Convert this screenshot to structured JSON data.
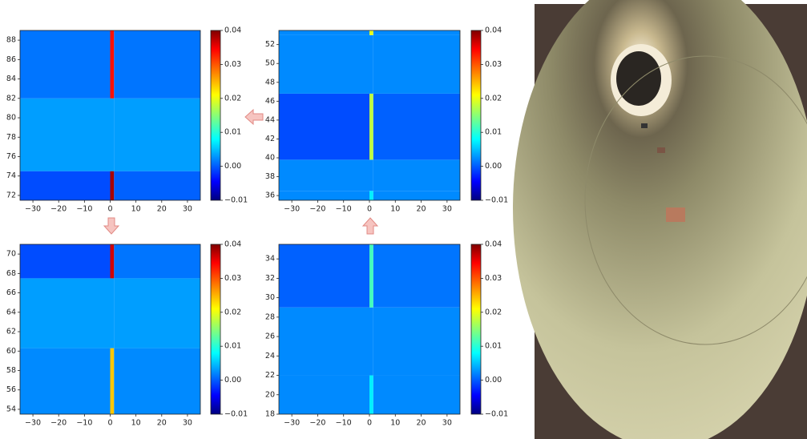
{
  "chart_data": [
    {
      "type": "heatmap",
      "colormap": "jet",
      "xlim": [
        -35,
        35
      ],
      "ylim": [
        71.5,
        89
      ],
      "xticks": [
        {
          "value": -30,
          "label": "−30"
        },
        {
          "value": -20,
          "label": "−20"
        },
        {
          "value": -10,
          "label": "−10"
        },
        0,
        10,
        20,
        30
      ],
      "yticks": [
        72,
        74,
        76,
        78,
        80,
        82,
        84,
        86,
        88
      ],
      "x_bins": [
        -35,
        0,
        1.5,
        35
      ],
      "y_bins": [
        71.5,
        74.5,
        82,
        89
      ],
      "values": [
        [
          0.0,
          0.038,
          0.001
        ],
        [
          0.004,
          0.004,
          0.004
        ],
        [
          0.002,
          0.033,
          0.002
        ]
      ],
      "clim": [
        -0.01,
        0.04
      ],
      "cticks": [
        {
          "value": -0.01,
          "label": "−0.01"
        },
        {
          "value": 0,
          "label": "0.00"
        },
        0.01,
        0.02,
        0.03,
        0.04
      ]
    },
    {
      "type": "heatmap",
      "colormap": "jet",
      "xlim": [
        -35,
        35
      ],
      "ylim": [
        35.5,
        53.5
      ],
      "xticks": [
        {
          "value": -30,
          "label": "−30"
        },
        {
          "value": -20,
          "label": "−20"
        },
        {
          "value": -10,
          "label": "−10"
        },
        0,
        10,
        20,
        30
      ],
      "yticks": [
        36,
        38,
        40,
        42,
        44,
        46,
        48,
        50,
        52
      ],
      "x_bins": [
        -35,
        0,
        1.5,
        35
      ],
      "y_bins": [
        35.5,
        36.5,
        39.8,
        46.8,
        53,
        53.5
      ],
      "values": [
        [
          0.003,
          0.008,
          0.003
        ],
        [
          0.003,
          0.003,
          0.003
        ],
        [
          0.0,
          0.018,
          0.001
        ],
        [
          0.003,
          0.003,
          0.003
        ],
        [
          0.003,
          0.02,
          0.003
        ]
      ],
      "clim": [
        -0.01,
        0.04
      ],
      "cticks": [
        {
          "value": -0.01,
          "label": "−0.01"
        },
        {
          "value": 0,
          "label": "0.00"
        },
        0.01,
        0.02,
        0.03,
        0.04
      ]
    },
    {
      "type": "heatmap",
      "colormap": "jet",
      "xlim": [
        -35,
        35
      ],
      "ylim": [
        53.5,
        71
      ],
      "xticks": [
        {
          "value": -30,
          "label": "−30"
        },
        {
          "value": -20,
          "label": "−20"
        },
        {
          "value": -10,
          "label": "−10"
        },
        0,
        10,
        20,
        30
      ],
      "yticks": [
        54,
        56,
        58,
        60,
        62,
        64,
        66,
        68,
        70
      ],
      "x_bins": [
        -35,
        0,
        1.5,
        35
      ],
      "y_bins": [
        53.5,
        60.3,
        67.5,
        71
      ],
      "values": [
        [
          0.003,
          0.024,
          0.003
        ],
        [
          0.004,
          0.004,
          0.004
        ],
        [
          0.0,
          0.036,
          0.002
        ]
      ],
      "clim": [
        -0.01,
        0.04
      ],
      "cticks": [
        {
          "value": -0.01,
          "label": "−0.01"
        },
        {
          "value": 0,
          "label": "0.00"
        },
        0.01,
        0.02,
        0.03,
        0.04
      ]
    },
    {
      "type": "heatmap",
      "colormap": "jet",
      "xlim": [
        -35,
        35
      ],
      "ylim": [
        18,
        35.5
      ],
      "xticks": [
        {
          "value": -30,
          "label": "−30"
        },
        {
          "value": -20,
          "label": "−20"
        },
        {
          "value": -10,
          "label": "−10"
        },
        0,
        10,
        20,
        30
      ],
      "yticks": [
        18,
        20,
        22,
        24,
        26,
        28,
        30,
        32,
        34
      ],
      "x_bins": [
        -35,
        0,
        1.5,
        35
      ],
      "y_bins": [
        18,
        22,
        29,
        35.5
      ],
      "values": [
        [
          0.003,
          0.008,
          0.003
        ],
        [
          0.003,
          0.003,
          0.003
        ],
        [
          0.001,
          0.012,
          0.002
        ]
      ],
      "clim": [
        -0.01,
        0.04
      ],
      "cticks": [
        {
          "value": -0.01,
          "label": "−0.01"
        },
        {
          "value": 0,
          "label": "0.00"
        },
        0.01,
        0.02,
        0.03,
        0.04
      ]
    }
  ]
}
